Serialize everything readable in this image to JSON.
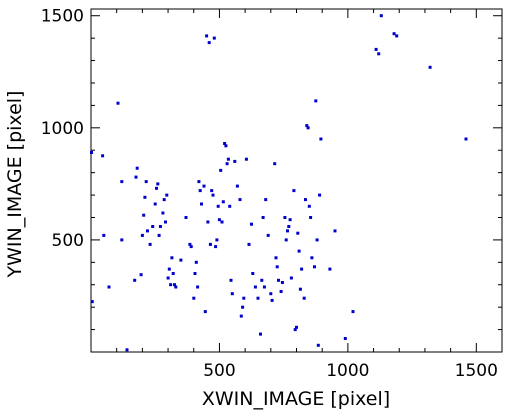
{
  "chart_data": {
    "type": "scatter",
    "xlabel": "XWIN_IMAGE [pixel]",
    "ylabel": "YWIN_IMAGE [pixel]",
    "xlim": [
      0,
      1600
    ],
    "ylim": [
      0,
      1530
    ],
    "xticks": [
      500,
      1000,
      1500
    ],
    "yticks": [
      500,
      1000,
      1500
    ],
    "grid": false,
    "marker_color": "#0000cc",
    "series": [
      {
        "points": [
          [
            2,
            890
          ],
          [
            5,
            225
          ],
          [
            45,
            875
          ],
          [
            50,
            520
          ],
          [
            70,
            290
          ],
          [
            105,
            1110
          ],
          [
            120,
            500
          ],
          [
            120,
            760
          ],
          [
            140,
            10
          ],
          [
            170,
            320
          ],
          [
            175,
            780
          ],
          [
            180,
            820
          ],
          [
            195,
            345
          ],
          [
            200,
            520
          ],
          [
            205,
            610
          ],
          [
            210,
            690
          ],
          [
            215,
            760
          ],
          [
            220,
            540
          ],
          [
            230,
            480
          ],
          [
            240,
            560
          ],
          [
            250,
            660
          ],
          [
            255,
            730
          ],
          [
            260,
            750
          ],
          [
            265,
            520
          ],
          [
            270,
            560
          ],
          [
            280,
            620
          ],
          [
            285,
            680
          ],
          [
            290,
            580
          ],
          [
            295,
            700
          ],
          [
            300,
            330
          ],
          [
            305,
            370
          ],
          [
            310,
            300
          ],
          [
            315,
            420
          ],
          [
            320,
            350
          ],
          [
            325,
            300
          ],
          [
            330,
            290
          ],
          [
            350,
            410
          ],
          [
            370,
            600
          ],
          [
            385,
            480
          ],
          [
            390,
            470
          ],
          [
            400,
            240
          ],
          [
            405,
            350
          ],
          [
            410,
            400
          ],
          [
            415,
            290
          ],
          [
            420,
            760
          ],
          [
            425,
            720
          ],
          [
            430,
            660
          ],
          [
            440,
            740
          ],
          [
            445,
            180
          ],
          [
            450,
            1410
          ],
          [
            455,
            580
          ],
          [
            460,
            1380
          ],
          [
            465,
            480
          ],
          [
            470,
            720
          ],
          [
            475,
            700
          ],
          [
            480,
            1400
          ],
          [
            485,
            470
          ],
          [
            490,
            500
          ],
          [
            495,
            650
          ],
          [
            500,
            590
          ],
          [
            505,
            810
          ],
          [
            510,
            580
          ],
          [
            515,
            670
          ],
          [
            520,
            930
          ],
          [
            525,
            920
          ],
          [
            530,
            840
          ],
          [
            535,
            860
          ],
          [
            540,
            650
          ],
          [
            545,
            320
          ],
          [
            550,
            260
          ],
          [
            560,
            850
          ],
          [
            570,
            740
          ],
          [
            580,
            680
          ],
          [
            585,
            160
          ],
          [
            590,
            200
          ],
          [
            595,
            240
          ],
          [
            605,
            860
          ],
          [
            615,
            480
          ],
          [
            625,
            570
          ],
          [
            630,
            350
          ],
          [
            640,
            290
          ],
          [
            650,
            240
          ],
          [
            660,
            80
          ],
          [
            665,
            320
          ],
          [
            670,
            600
          ],
          [
            675,
            290
          ],
          [
            680,
            680
          ],
          [
            690,
            520
          ],
          [
            700,
            260
          ],
          [
            705,
            230
          ],
          [
            715,
            840
          ],
          [
            720,
            420
          ],
          [
            725,
            380
          ],
          [
            730,
            320
          ],
          [
            740,
            270
          ],
          [
            745,
            310
          ],
          [
            755,
            600
          ],
          [
            760,
            500
          ],
          [
            765,
            540
          ],
          [
            770,
            560
          ],
          [
            775,
            590
          ],
          [
            780,
            330
          ],
          [
            790,
            720
          ],
          [
            795,
            100
          ],
          [
            800,
            110
          ],
          [
            805,
            530
          ],
          [
            810,
            450
          ],
          [
            815,
            280
          ],
          [
            820,
            370
          ],
          [
            830,
            240
          ],
          [
            835,
            680
          ],
          [
            840,
            1010
          ],
          [
            845,
            1000
          ],
          [
            850,
            650
          ],
          [
            855,
            600
          ],
          [
            860,
            420
          ],
          [
            870,
            380
          ],
          [
            875,
            1120
          ],
          [
            880,
            500
          ],
          [
            885,
            30
          ],
          [
            890,
            700
          ],
          [
            895,
            950
          ],
          [
            930,
            370
          ],
          [
            950,
            540
          ],
          [
            990,
            60
          ],
          [
            1020,
            180
          ],
          [
            1110,
            1350
          ],
          [
            1120,
            1330
          ],
          [
            1130,
            1500
          ],
          [
            1180,
            1420
          ],
          [
            1190,
            1410
          ],
          [
            1320,
            1270
          ],
          [
            1460,
            950
          ]
        ]
      }
    ]
  }
}
